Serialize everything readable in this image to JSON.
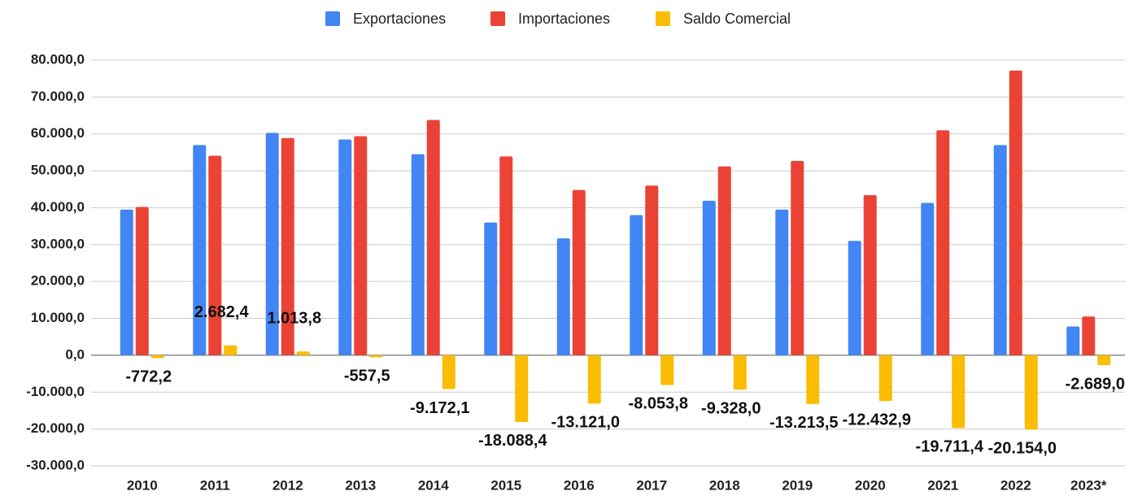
{
  "chart_data": {
    "type": "bar",
    "categories": [
      "2010",
      "2011",
      "2012",
      "2013",
      "2014",
      "2015",
      "2016",
      "2017",
      "2018",
      "2019",
      "2020",
      "2021",
      "2022",
      "2023*"
    ],
    "series": [
      {
        "name": "Exportaciones",
        "color": "#4285f4",
        "values": [
          39500,
          57000,
          60300,
          58500,
          54500,
          36000,
          31700,
          38000,
          41900,
          39500,
          31000,
          41300,
          57000,
          7800
        ]
      },
      {
        "name": "Importaciones",
        "color": "#ea4335",
        "values": [
          40200,
          54100,
          58900,
          59400,
          63800,
          53900,
          44800,
          46000,
          51200,
          52700,
          43400,
          61000,
          77200,
          10500
        ]
      },
      {
        "name": "Saldo Comercial",
        "color": "#fbbc04",
        "values": [
          -772.2,
          2682.4,
          1013.8,
          -557.5,
          -9172.1,
          -18088.4,
          -13121.0,
          -8053.8,
          -9328.0,
          -13213.5,
          -12432.9,
          -19711.4,
          -20154.0,
          -2689.0
        ],
        "value_labels": [
          "-772,2",
          "2.682,4",
          "1.013,8",
          "-557,5",
          "-9.172,1",
          "-18.088,4",
          "-13.121,0",
          "-8.053,8",
          "-9.328,0",
          "-13.213,5",
          "-12.432,9",
          "-19.711,4",
          "-20.154,0",
          "-2.689,0"
        ]
      }
    ],
    "ylim": [
      -30000,
      80000
    ],
    "yticks": [
      {
        "value": -30000,
        "label": "-30.000,0"
      },
      {
        "value": -20000,
        "label": "-20.000,0"
      },
      {
        "value": -10000,
        "label": "-10.000,0"
      },
      {
        "value": 0,
        "label": "0,0"
      },
      {
        "value": 10000,
        "label": "10.000,0"
      },
      {
        "value": 20000,
        "label": "20.000,0"
      },
      {
        "value": 30000,
        "label": "30.000,0"
      },
      {
        "value": 40000,
        "label": "40.000,0"
      },
      {
        "value": 50000,
        "label": "50.000,0"
      },
      {
        "value": 60000,
        "label": "60.000,0"
      },
      {
        "value": 70000,
        "label": "70.000,0"
      },
      {
        "value": 80000,
        "label": "80.000,0"
      }
    ],
    "grid": true,
    "legend": "top"
  }
}
